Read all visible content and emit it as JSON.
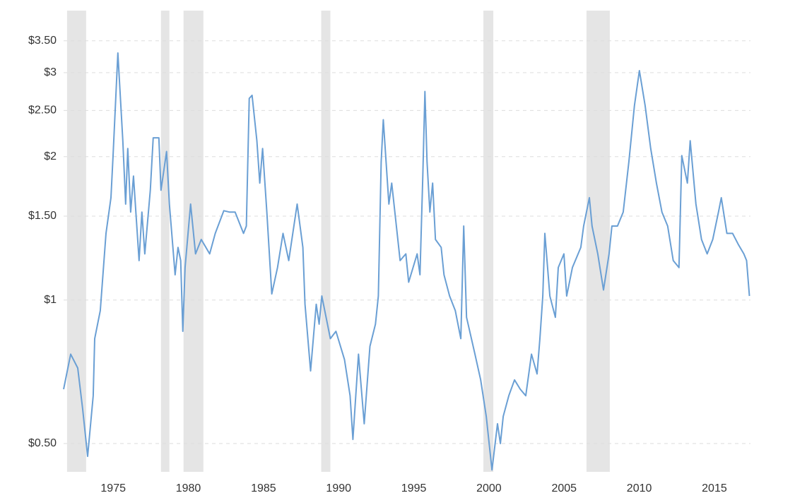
{
  "chart_data": {
    "type": "line",
    "log_y": true,
    "grid": true,
    "color": "#6a9fd4",
    "shade_color": "#e5e5e5",
    "xlim": [
      1971.7,
      2017.4
    ],
    "xticks": [
      1975,
      1980,
      1985,
      1990,
      1995,
      2000,
      2005,
      2010,
      2015
    ],
    "ylim": [
      0.436,
      4.05
    ],
    "yticks": [
      {
        "value": 0.5,
        "label": "$0.50"
      },
      {
        "value": 1,
        "label": "$1"
      },
      {
        "value": 1.5,
        "label": "$1.50"
      },
      {
        "value": 2,
        "label": "$2"
      },
      {
        "value": 2.5,
        "label": "$2.50"
      },
      {
        "value": 3,
        "label": "$3"
      },
      {
        "value": 3.5,
        "label": "$3.50"
      }
    ],
    "shaded_regions": [
      [
        1971.93,
        1973.2
      ],
      [
        1978.18,
        1978.74
      ],
      [
        1979.68,
        1981.0
      ],
      [
        1988.84,
        1989.45
      ],
      [
        1999.63,
        2000.29
      ],
      [
        2006.49,
        2008.04
      ]
    ],
    "x": [
      1971.7,
      1972.17,
      1972.64,
      1972.97,
      1973.3,
      1973.67,
      1973.77,
      1974.14,
      1974.52,
      1974.85,
      1974.99,
      1975.31,
      1975.64,
      1975.83,
      1975.97,
      1976.16,
      1976.35,
      1976.72,
      1976.91,
      1977.1,
      1977.47,
      1977.66,
      1978.04,
      1978.18,
      1978.55,
      1978.74,
      1979.12,
      1979.31,
      1979.49,
      1979.63,
      1979.78,
      1980.15,
      1980.48,
      1980.86,
      1981.42,
      1981.79,
      1982.36,
      1982.73,
      1983.11,
      1983.67,
      1983.86,
      1984.05,
      1984.24,
      1984.56,
      1984.75,
      1984.94,
      1985.22,
      1985.55,
      1985.93,
      1986.3,
      1986.68,
      1987.24,
      1987.62,
      1987.76,
      1988.13,
      1988.51,
      1988.7,
      1988.88,
      1989.45,
      1989.82,
      1990.39,
      1990.76,
      1990.95,
      1991.32,
      1991.7,
      1992.08,
      1992.45,
      1992.64,
      1992.83,
      1992.97,
      1993.34,
      1993.53,
      1994.09,
      1994.47,
      1994.66,
      1995.22,
      1995.41,
      1995.6,
      1995.74,
      1995.88,
      1996.07,
      1996.25,
      1996.44,
      1996.82,
      1997.01,
      1997.38,
      1997.76,
      1998.13,
      1998.32,
      1998.51,
      1999.07,
      1999.45,
      1999.82,
      2000.2,
      2000.57,
      2000.76,
      2000.95,
      2001.32,
      2001.7,
      2002.08,
      2002.45,
      2002.83,
      2003.2,
      2003.39,
      2003.58,
      2003.72,
      2004.05,
      2004.42,
      2004.61,
      2004.99,
      2005.17,
      2005.55,
      2006.11,
      2006.3,
      2006.68,
      2006.86,
      2007.24,
      2007.62,
      2007.99,
      2008.18,
      2008.55,
      2008.93,
      2009.31,
      2009.68,
      2010.01,
      2010.39,
      2010.76,
      2011.14,
      2011.51,
      2011.89,
      2012.26,
      2012.64,
      2012.83,
      2013.2,
      2013.39,
      2013.77,
      2014.14,
      2014.52,
      2014.89,
      2015.27,
      2015.46,
      2015.83,
      2016.21,
      2016.58,
      2016.96,
      2017.14,
      2017.33
    ],
    "values": [
      0.65,
      0.77,
      0.72,
      0.59,
      0.47,
      0.63,
      0.83,
      0.95,
      1.38,
      1.64,
      2.01,
      3.3,
      2.16,
      1.59,
      2.08,
      1.53,
      1.82,
      1.21,
      1.53,
      1.25,
      1.7,
      2.19,
      2.19,
      1.7,
      2.05,
      1.59,
      1.13,
      1.29,
      1.21,
      0.86,
      1.17,
      1.59,
      1.25,
      1.34,
      1.25,
      1.38,
      1.54,
      1.53,
      1.53,
      1.38,
      1.43,
      2.65,
      2.69,
      2.16,
      1.76,
      2.08,
      1.53,
      1.03,
      1.17,
      1.38,
      1.21,
      1.59,
      1.29,
      0.98,
      0.71,
      0.98,
      0.89,
      1.02,
      0.83,
      0.86,
      0.75,
      0.63,
      0.51,
      0.77,
      0.55,
      0.8,
      0.89,
      1.02,
      1.95,
      2.39,
      1.59,
      1.76,
      1.21,
      1.25,
      1.09,
      1.25,
      1.13,
      1.82,
      2.74,
      1.95,
      1.53,
      1.76,
      1.34,
      1.29,
      1.13,
      1.02,
      0.95,
      0.83,
      1.43,
      0.92,
      0.77,
      0.68,
      0.57,
      0.44,
      0.55,
      0.5,
      0.57,
      0.63,
      0.68,
      0.65,
      0.63,
      0.77,
      0.7,
      0.83,
      1.02,
      1.38,
      1.02,
      0.92,
      1.17,
      1.25,
      1.02,
      1.17,
      1.29,
      1.43,
      1.64,
      1.43,
      1.25,
      1.05,
      1.25,
      1.43,
      1.43,
      1.53,
      1.95,
      2.56,
      3.03,
      2.56,
      2.08,
      1.76,
      1.53,
      1.43,
      1.21,
      1.17,
      2.01,
      1.76,
      2.16,
      1.59,
      1.34,
      1.25,
      1.34,
      1.53,
      1.64,
      1.38,
      1.38,
      1.31,
      1.25,
      1.21,
      1.02
    ]
  }
}
